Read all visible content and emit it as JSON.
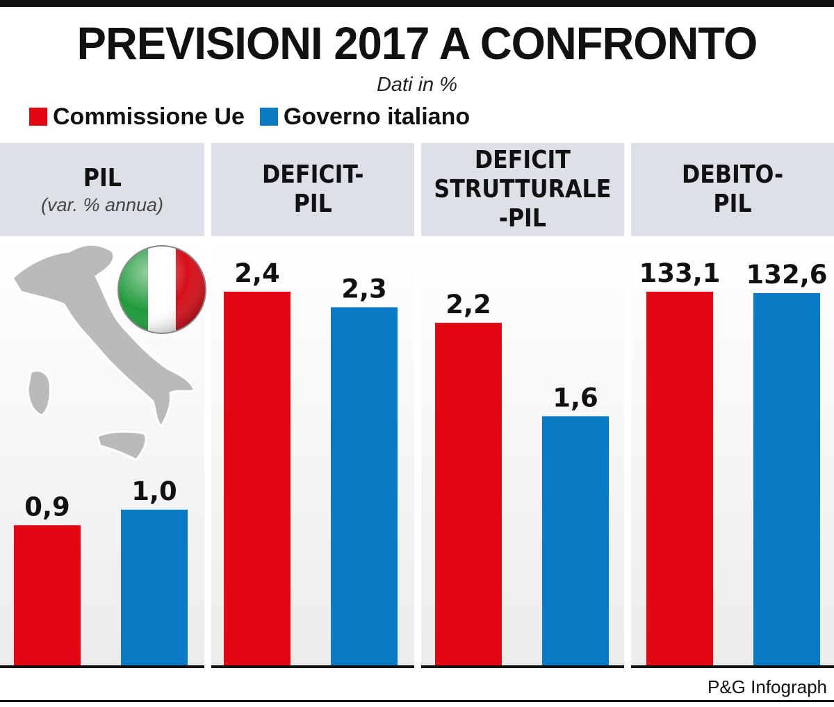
{
  "title": "PREVISIONI 2017 A CONFRONTO",
  "subtitle": "Dati in %",
  "legend": [
    {
      "label": "Commissione Ue",
      "color": "#e30613"
    },
    {
      "label": "Governo italiano",
      "color": "#0a7ac5"
    }
  ],
  "credit": "P&G Infograph",
  "chart_data": {
    "type": "bar",
    "title": "PREVISIONI 2017 A CONFRONTO",
    "subtitle": "Dati in %",
    "panels": [
      {
        "label": "PIL",
        "sublabel": "(var. % annua)",
        "values": [
          0.9,
          1.0
        ],
        "value_labels": [
          "0,9",
          "1,0"
        ]
      },
      {
        "label": "DEFICIT-\nPIL",
        "values": [
          2.4,
          2.3
        ],
        "value_labels": [
          "2,4",
          "2,3"
        ]
      },
      {
        "label": "DEFICIT\nSTRUTTURALE\n-PIL",
        "values": [
          2.2,
          1.6
        ],
        "value_labels": [
          "2,2",
          "1,6"
        ]
      },
      {
        "label": "DEBITO-\nPIL",
        "values": [
          133.1,
          132.6
        ],
        "value_labels": [
          "133,1",
          "132,6"
        ]
      }
    ],
    "series": [
      {
        "name": "Commissione Ue",
        "color": "#e30613"
      },
      {
        "name": "Governo italiano",
        "color": "#0a7ac5"
      }
    ],
    "ylim": [
      0,
      2.4
    ],
    "debt_scale_max": 133.1
  }
}
